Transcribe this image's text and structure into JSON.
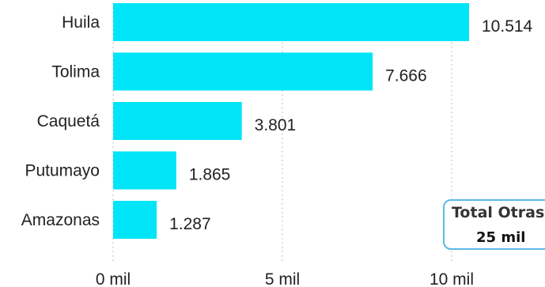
{
  "chart_data": {
    "type": "bar",
    "orientation": "horizontal",
    "categories": [
      "Huila",
      "Tolima",
      "Caquetá",
      "Putumayo",
      "Amazonas"
    ],
    "values": [
      10514,
      7666,
      3801,
      1865,
      1287
    ],
    "value_labels": [
      "10.514",
      "7.666",
      "3.801",
      "1.865",
      "1.287"
    ],
    "xticks": [
      {
        "value": 0,
        "label": "0 mil"
      },
      {
        "value": 5000,
        "label": "5 mil"
      },
      {
        "value": 10000,
        "label": "10 mil"
      }
    ],
    "xlim": [
      0,
      10514
    ],
    "bar_color": "#00e5f7",
    "grid": "vertical dotted",
    "title": "",
    "xlabel": "",
    "ylabel": ""
  },
  "callout": {
    "title": "Total Otras",
    "value": "25 mil",
    "border_color": "#5bb8e8"
  }
}
